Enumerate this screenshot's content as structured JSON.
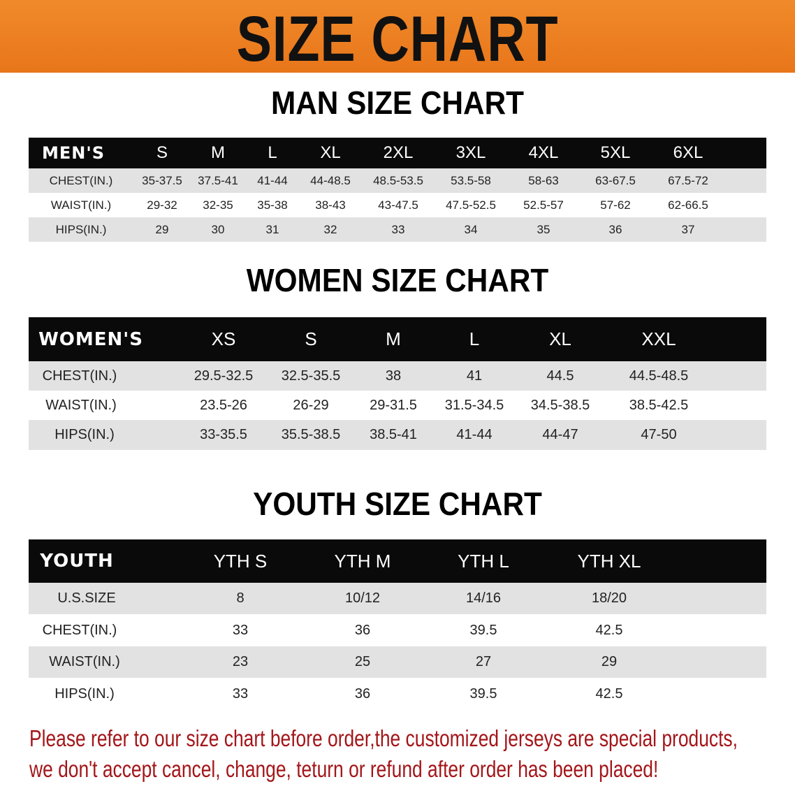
{
  "banner_title": "SIZE CHART",
  "accent_color": "#e8761a",
  "notice_color": "#a3161a",
  "men": {
    "title": "MAN SIZE CHART",
    "header": [
      "MEN'S",
      "S",
      "M",
      "L",
      "XL",
      "2XL",
      "3XL",
      "4XL",
      "5XL",
      "6XL"
    ],
    "rows": [
      [
        "CHEST(IN.)",
        "35-37.5",
        "37.5-41",
        "41-44",
        "44-48.5",
        "48.5-53.5",
        "53.5-58",
        "58-63",
        "63-67.5",
        "67.5-72"
      ],
      [
        "WAIST(IN.)",
        "29-32",
        "32-35",
        "35-38",
        "38-43",
        "43-47.5",
        "47.5-52.5",
        "52.5-57",
        "57-62",
        "62-66.5"
      ],
      [
        "HIPS(IN.)",
        "29",
        "30",
        "31",
        "32",
        "33",
        "34",
        "35",
        "36",
        "37"
      ]
    ]
  },
  "women": {
    "title": "WOMEN SIZE CHART",
    "header": [
      "WOMEN'S",
      "XS",
      "S",
      "M",
      "L",
      "XL",
      "XXL"
    ],
    "rows": [
      [
        "CHEST(IN.)",
        "29.5-32.5",
        "32.5-35.5",
        "38",
        "41",
        "44.5",
        "44.5-48.5"
      ],
      [
        "WAIST(IN.)",
        "23.5-26",
        "26-29",
        "29-31.5",
        "31.5-34.5",
        "34.5-38.5",
        "38.5-42.5"
      ],
      [
        "HIPS(IN.)",
        "33-35.5",
        "35.5-38.5",
        "38.5-41",
        "41-44",
        "44-47",
        "47-50"
      ]
    ]
  },
  "youth": {
    "title": "YOUTH SIZE CHART",
    "header": [
      "YOUTH",
      "YTH S",
      "YTH M",
      "YTH L",
      "YTH XL"
    ],
    "rows": [
      [
        "U.S.SIZE",
        "8",
        "10/12",
        "14/16",
        "18/20"
      ],
      [
        "CHEST(IN.)",
        "33",
        "36",
        "39.5",
        "42.5"
      ],
      [
        "WAIST(IN.)",
        "23",
        "25",
        "27",
        "29"
      ],
      [
        "HIPS(IN.)",
        "33",
        "36",
        "39.5",
        "42.5"
      ]
    ]
  },
  "notice": [
    "Please refer to our size chart before order,the customized jerseys are special products,",
    "we don't accept cancel, change, teturn or refund after order has been placed!"
  ]
}
